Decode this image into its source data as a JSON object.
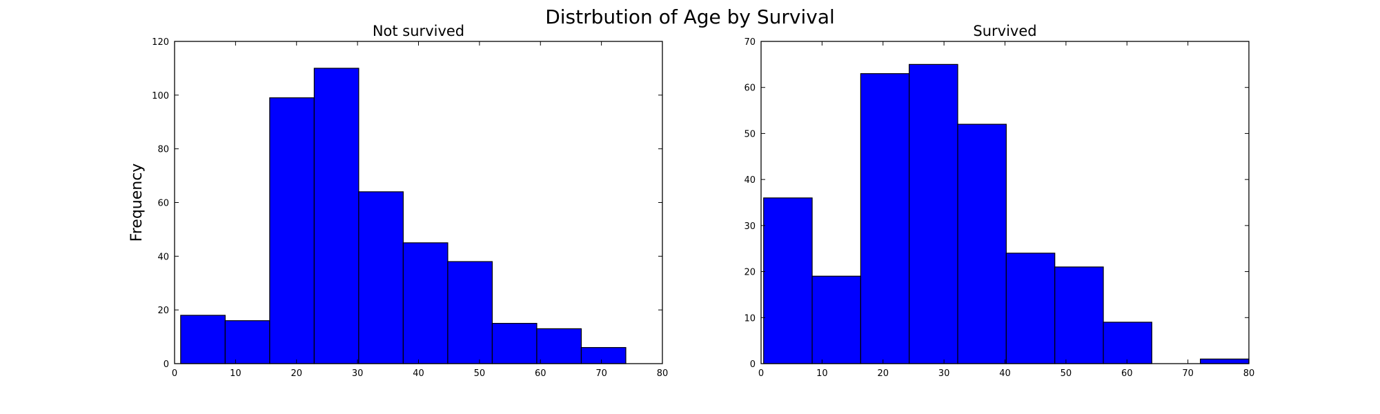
{
  "figure_title": "Distrbution of Age by Survival",
  "colors": {
    "bar_fill": "#0000ff",
    "bar_edge": "#000000",
    "axes_edge": "#000000",
    "background": "#ffffff"
  },
  "chart_data": [
    {
      "type": "bar",
      "title": "Not survived",
      "xlabel": "",
      "ylabel": "Frequency",
      "xlim": [
        0,
        80
      ],
      "ylim": [
        0,
        120
      ],
      "xticks": [
        0,
        10,
        20,
        30,
        40,
        50,
        60,
        70,
        80
      ],
      "yticks": [
        0,
        20,
        40,
        60,
        80,
        100,
        120
      ],
      "bin_edges": [
        1,
        8.3,
        15.6,
        22.9,
        30.2,
        37.5,
        44.8,
        52.1,
        59.4,
        66.7,
        74
      ],
      "values": [
        18,
        16,
        99,
        110,
        64,
        45,
        38,
        15,
        13,
        6
      ],
      "grid": false,
      "legend": "none"
    },
    {
      "type": "bar",
      "title": "Survived",
      "xlabel": "",
      "ylabel": "",
      "xlim": [
        0,
        80
      ],
      "ylim": [
        0,
        70
      ],
      "xticks": [
        0,
        10,
        20,
        30,
        40,
        50,
        60,
        70,
        80
      ],
      "yticks": [
        0,
        10,
        20,
        30,
        40,
        50,
        60,
        70
      ],
      "bin_edges": [
        0.42,
        8.38,
        16.34,
        24.29,
        32.25,
        40.21,
        48.17,
        56.13,
        64.08,
        72.04,
        80
      ],
      "values": [
        36,
        19,
        63,
        65,
        52,
        24,
        21,
        9,
        0,
        1
      ],
      "grid": false,
      "legend": "none"
    }
  ]
}
